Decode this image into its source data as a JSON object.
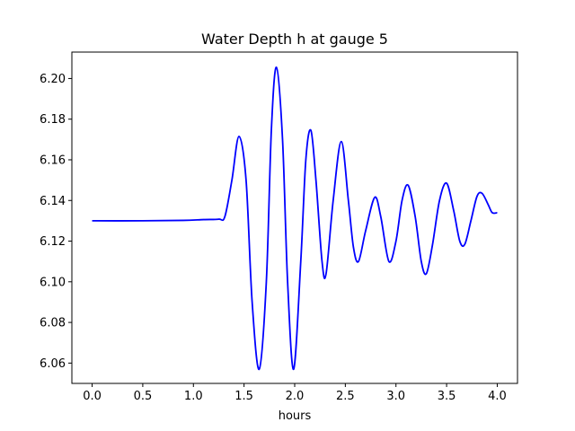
{
  "chart_data": {
    "type": "line",
    "title": "Water Depth h at gauge 5",
    "xlabel": "hours",
    "ylabel": "",
    "xlim": [
      -0.2,
      4.2
    ],
    "ylim": [
      6.05,
      6.213
    ],
    "xticks": [
      0.0,
      0.5,
      1.0,
      1.5,
      2.0,
      2.5,
      3.0,
      3.5,
      4.0
    ],
    "xtick_labels": [
      "0.0",
      "0.5",
      "1.0",
      "1.5",
      "2.0",
      "2.5",
      "3.0",
      "3.5",
      "4.0"
    ],
    "yticks": [
      6.06,
      6.08,
      6.1,
      6.12,
      6.14,
      6.16,
      6.18,
      6.2
    ],
    "ytick_labels": [
      "6.06",
      "6.08",
      "6.10",
      "6.12",
      "6.14",
      "6.16",
      "6.18",
      "6.20"
    ],
    "grid": false,
    "series": [
      {
        "color": "#0000ff",
        "points": [
          [
            0.0,
            6.13
          ],
          [
            0.5,
            6.13
          ],
          [
            0.9,
            6.1302
          ],
          [
            1.1,
            6.1306
          ],
          [
            1.25,
            6.1308
          ],
          [
            1.31,
            6.132
          ],
          [
            1.38,
            6.15
          ],
          [
            1.45,
            6.1715
          ],
          [
            1.52,
            6.15
          ],
          [
            1.58,
            6.09
          ],
          [
            1.65,
            6.057
          ],
          [
            1.72,
            6.1
          ],
          [
            1.77,
            6.175
          ],
          [
            1.82,
            6.2055
          ],
          [
            1.88,
            6.17
          ],
          [
            1.93,
            6.1
          ],
          [
            1.99,
            6.057
          ],
          [
            2.06,
            6.11
          ],
          [
            2.11,
            6.16
          ],
          [
            2.16,
            6.1745
          ],
          [
            2.21,
            6.15
          ],
          [
            2.27,
            6.11
          ],
          [
            2.31,
            6.104
          ],
          [
            2.38,
            6.14
          ],
          [
            2.46,
            6.169
          ],
          [
            2.53,
            6.14
          ],
          [
            2.58,
            6.117
          ],
          [
            2.63,
            6.11
          ],
          [
            2.7,
            6.125
          ],
          [
            2.79,
            6.1415
          ],
          [
            2.85,
            6.132
          ],
          [
            2.93,
            6.11
          ],
          [
            3.0,
            6.12
          ],
          [
            3.06,
            6.14
          ],
          [
            3.12,
            6.1475
          ],
          [
            3.19,
            6.132
          ],
          [
            3.25,
            6.11
          ],
          [
            3.3,
            6.104
          ],
          [
            3.36,
            6.118
          ],
          [
            3.43,
            6.14
          ],
          [
            3.5,
            6.1485
          ],
          [
            3.57,
            6.135
          ],
          [
            3.63,
            6.12
          ],
          [
            3.68,
            6.1185
          ],
          [
            3.74,
            6.13
          ],
          [
            3.8,
            6.142
          ],
          [
            3.85,
            6.1435
          ],
          [
            3.91,
            6.138
          ],
          [
            3.95,
            6.134
          ],
          [
            4.0,
            6.134
          ]
        ]
      }
    ]
  }
}
